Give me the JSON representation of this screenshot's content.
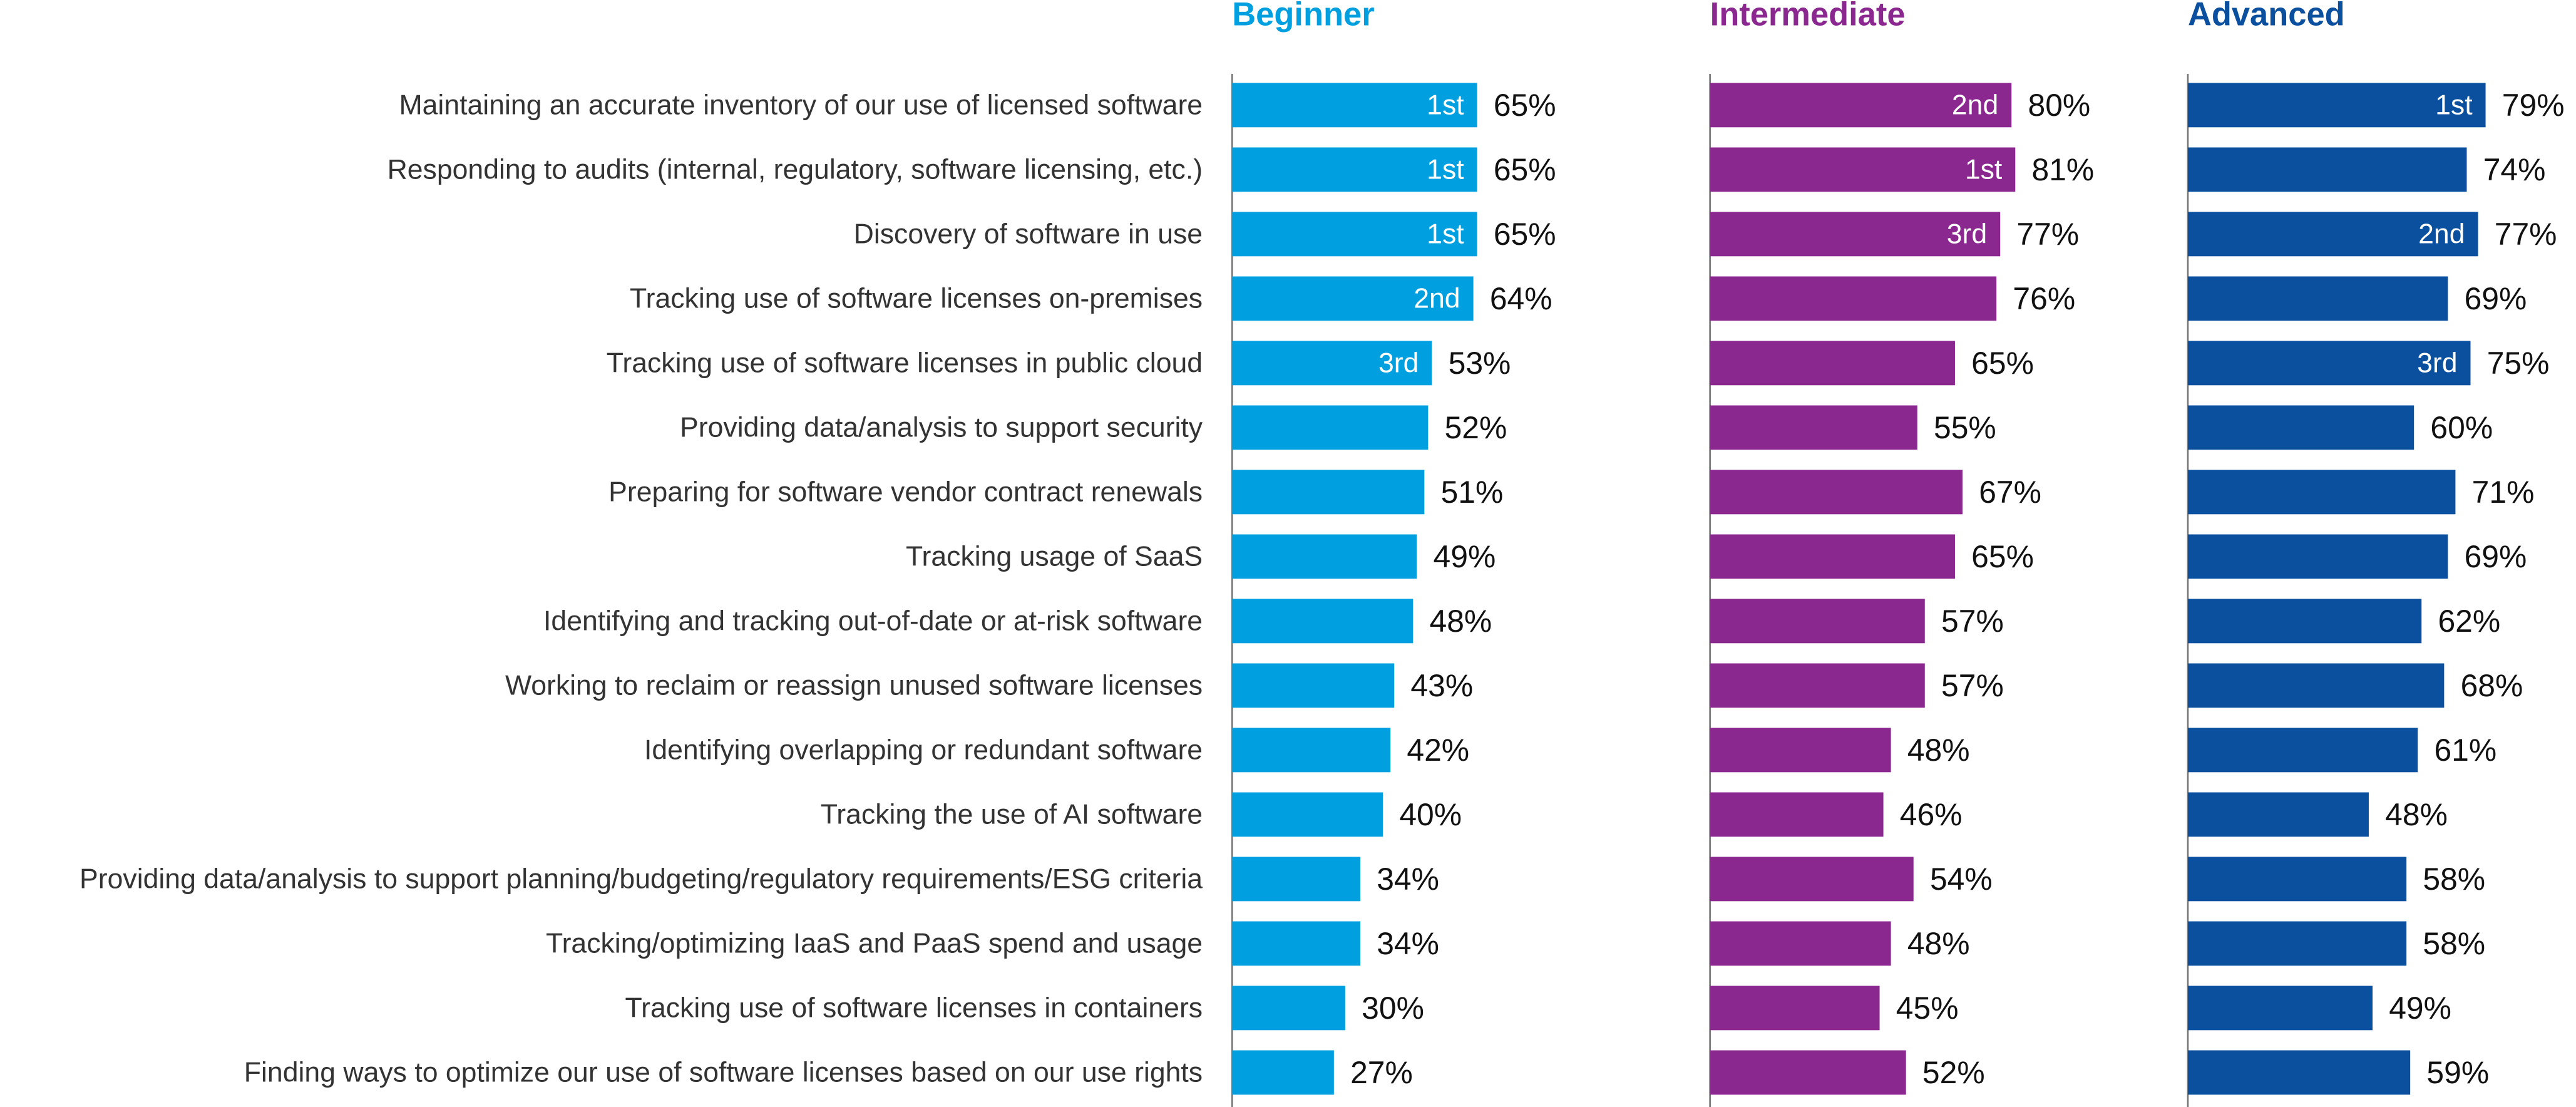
{
  "chart_data": {
    "type": "bar",
    "orientation": "horizontal",
    "categories": [
      "Maintaining an accurate inventory of our use of licensed software",
      "Responding to audits (internal, regulatory, software licensing, etc.)",
      "Discovery of software in use",
      "Tracking use of software licenses on-premises",
      "Tracking use of software licenses in public cloud",
      "Providing data/analysis to support security",
      "Preparing for software vendor contract renewals",
      "Tracking usage of SaaS",
      "Identifying and tracking out-of-date or at-risk software",
      "Working to reclaim or reassign unused software licenses",
      "Identifying overlapping or redundant software",
      "Tracking the use of AI software",
      "Providing data/analysis to support planning/budgeting/regulatory requirements/ESG criteria",
      "Tracking/optimizing IaaS and PaaS spend and usage",
      "Tracking use of software licenses in containers",
      "Finding ways to optimize our use of software licenses based on our use rights"
    ],
    "series": [
      {
        "name": "Beginner",
        "color": "#00a0e0",
        "values": [
          65,
          65,
          65,
          64,
          53,
          52,
          51,
          49,
          48,
          43,
          42,
          40,
          34,
          34,
          30,
          27
        ],
        "value_labels": [
          "65%",
          "65%",
          "65%",
          "64%",
          "53%",
          "52%",
          "51%",
          "49%",
          "48%",
          "43%",
          "42%",
          "40%",
          "34%",
          "34%",
          "30%",
          "27%"
        ],
        "ranks": [
          "1st",
          "1st",
          "1st",
          "2nd",
          "3rd",
          null,
          null,
          null,
          null,
          null,
          null,
          null,
          null,
          null,
          null,
          null
        ]
      },
      {
        "name": "Intermediate",
        "color": "#8a2890",
        "values": [
          80,
          81,
          77,
          76,
          65,
          55,
          67,
          65,
          57,
          57,
          48,
          46,
          54,
          48,
          45,
          52
        ],
        "value_labels": [
          "80%",
          "81%",
          "77%",
          "76%",
          "65%",
          "55%",
          "67%",
          "65%",
          "57%",
          "57%",
          "48%",
          "46%",
          "54%",
          "48%",
          "45%",
          "52%"
        ],
        "ranks": [
          "2nd",
          "1st",
          "3rd",
          null,
          null,
          null,
          null,
          null,
          null,
          null,
          null,
          null,
          null,
          null,
          null,
          null
        ]
      },
      {
        "name": "Advanced",
        "color": "#0b4f9f",
        "values": [
          79,
          74,
          77,
          69,
          75,
          60,
          71,
          69,
          62,
          68,
          61,
          48,
          58,
          58,
          49,
          59
        ],
        "value_labels": [
          "79%",
          "74%",
          "77%",
          "69%",
          "75%",
          "60%",
          "71%",
          "69%",
          "62%",
          "68%",
          "61%",
          "48%",
          "58%",
          "58%",
          "49%",
          "59%"
        ],
        "ranks": [
          "1st",
          null,
          "2nd",
          null,
          "3rd",
          null,
          null,
          null,
          null,
          null,
          null,
          null,
          null,
          null,
          null,
          null
        ]
      }
    ]
  }
}
